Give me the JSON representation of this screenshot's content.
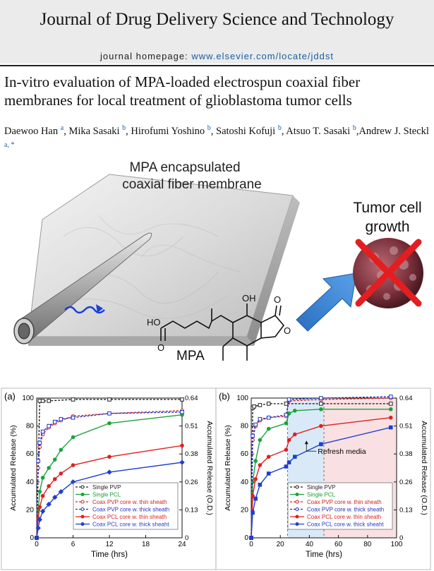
{
  "journal": {
    "title": "Journal of Drug Delivery Science and Technology",
    "homepage_label": "journal homepage:",
    "homepage_url": "www.elsevier.com/locate/jddst"
  },
  "paper": {
    "title_line1": "In-vitro evaluation of MPA-loaded electrospun coaxial fiber",
    "title_line2": "membranes for local treatment of glioblastoma tumor cells"
  },
  "authors": [
    {
      "name": "Daewoo Han",
      "aff": "a",
      "sep": ", "
    },
    {
      "name": "Mika Sasaki",
      "aff": "b",
      "sep": ", "
    },
    {
      "name": "Hirofumi Yoshino",
      "aff": "b",
      "sep": ", "
    },
    {
      "name": "Satoshi Kofuji",
      "aff": "b",
      "sep": ", "
    },
    {
      "name": "Atsuo T. Sasaki",
      "aff": "b",
      "sep": ","
    },
    {
      "name": "Andrew J. Steckl",
      "aff": "a, *",
      "sep": ""
    }
  ],
  "graphic": {
    "membrane_label_line1": "MPA encapsulated",
    "membrane_label_line2": "coaxial fiber membrane",
    "tumor_label_line1": "Tumor cell",
    "tumor_label_line2": "growth",
    "drug_name": "MPA",
    "chem_oh": "OH",
    "chem_ho": "HO",
    "chem_o1": "O",
    "chem_o2": "O",
    "chem_o3": "O"
  },
  "chart_data": [
    {
      "panel": "(a)",
      "type": "line",
      "xlabel": "Time (hrs)",
      "ylabel": "Accumulated Release (%)",
      "y2label": "Accumulated Release (O.D.)",
      "xlim": [
        0,
        24
      ],
      "ylim": [
        0,
        100
      ],
      "xticks": [
        "0",
        "6",
        "12",
        "18",
        "24"
      ],
      "yticks": [
        "0",
        "20",
        "40",
        "60",
        "80",
        "100"
      ],
      "y2ticks": [
        "0",
        "0.13",
        "0.26",
        "0.38",
        "0.51",
        "0.64"
      ],
      "grid": false,
      "legend": "bottom-right",
      "series": [
        {
          "name": "Single PVP",
          "color": "#222222",
          "dash": true,
          "marker": "square-open",
          "x": [
            0,
            0.5,
            1,
            2,
            6,
            12,
            24
          ],
          "y": [
            0,
            98,
            98,
            98,
            99,
            99,
            99
          ]
        },
        {
          "name": "Single PCL",
          "color": "#1aa33a",
          "dash": false,
          "marker": "circle",
          "x": [
            0,
            0.25,
            0.5,
            1,
            2,
            3,
            4,
            6,
            12,
            24
          ],
          "y": [
            0,
            20,
            33,
            43,
            50,
            56,
            63,
            72,
            82,
            88
          ]
        },
        {
          "name": "Coax PVP core w. thin sheath",
          "color": "#d62020",
          "dash": true,
          "marker": "circle-open",
          "x": [
            0,
            0.25,
            0.5,
            1,
            2,
            3,
            4,
            6,
            12,
            24
          ],
          "y": [
            0,
            50,
            65,
            74,
            79,
            82,
            84,
            87,
            89,
            91
          ]
        },
        {
          "name": "Coax PVP core w. thick sheath",
          "color": "#2030c0",
          "dash": true,
          "marker": "square-open",
          "x": [
            0,
            0.25,
            0.5,
            1,
            2,
            3,
            4,
            6,
            12,
            24
          ],
          "y": [
            0,
            55,
            68,
            76,
            80,
            83,
            85,
            86,
            89,
            90
          ]
        },
        {
          "name": "Coax PCL core w. thin sheath",
          "color": "#e02020",
          "dash": false,
          "marker": "circle",
          "x": [
            0,
            0.25,
            0.5,
            1,
            2,
            3,
            4,
            6,
            12,
            24
          ],
          "y": [
            0,
            14,
            22,
            30,
            37,
            42,
            46,
            52,
            58,
            66
          ]
        },
        {
          "name": "Coax PCL core w. thick sheaht",
          "color": "#1f3fd0",
          "dash": false,
          "marker": "diamond",
          "x": [
            0,
            0.25,
            0.5,
            1,
            2,
            3,
            4,
            6,
            12,
            24
          ],
          "y": [
            0,
            7,
            13,
            19,
            24,
            29,
            33,
            40,
            47,
            54
          ]
        }
      ]
    },
    {
      "panel": "(b)",
      "type": "line",
      "xlabel": "Time (hrs)",
      "ylabel": "Accumulated Release (%)",
      "y2label": "Accumulated Release (O.D.)",
      "xlim": [
        0,
        100
      ],
      "ylim": [
        0,
        100
      ],
      "xticks": [
        "0",
        "20",
        "40",
        "60",
        "80",
        "100"
      ],
      "yticks": [
        "0",
        "20",
        "40",
        "60",
        "80",
        "100"
      ],
      "y2ticks": [
        "0",
        "0.13",
        "0.26",
        "0.38",
        "0.51",
        "0.64"
      ],
      "grid": false,
      "legend": "bottom-right",
      "annotation": "Refresh media",
      "shaded_regions": [
        {
          "x": [
            25,
            50
          ],
          "color": "#cfe3f5"
        },
        {
          "x": [
            50,
            100
          ],
          "color": "#f7d9dc"
        }
      ],
      "series": [
        {
          "name": "Single PVP",
          "color": "#222222",
          "dash": true,
          "marker": "square-open",
          "x": [
            0,
            1,
            2,
            6,
            12,
            24,
            48,
            96
          ],
          "y": [
            0,
            93,
            94,
            95,
            96,
            96,
            96,
            96
          ]
        },
        {
          "name": "Single PCL",
          "color": "#1aa33a",
          "dash": false,
          "marker": "circle",
          "x": [
            0,
            1,
            3,
            6,
            12,
            24,
            26,
            30,
            48,
            96
          ],
          "y": [
            0,
            40,
            55,
            70,
            78,
            82,
            89,
            91,
            92,
            92
          ]
        },
        {
          "name": "Coax PVP core w. thin sheath",
          "color": "#d62020",
          "dash": true,
          "marker": "circle-open",
          "x": [
            0,
            1,
            3,
            6,
            12,
            24,
            26,
            48,
            96
          ],
          "y": [
            0,
            70,
            80,
            84,
            86,
            87,
            98,
            99,
            100
          ]
        },
        {
          "name": "Coax PVP core w. thick sheath",
          "color": "#2030c0",
          "dash": true,
          "marker": "square-open",
          "x": [
            0,
            1,
            3,
            6,
            12,
            24,
            26,
            48,
            96
          ],
          "y": [
            0,
            73,
            81,
            85,
            86,
            88,
            99,
            100,
            101
          ]
        },
        {
          "name": "Coax PCL core w. thin sheath",
          "color": "#e02020",
          "dash": false,
          "marker": "circle",
          "x": [
            0,
            1,
            3,
            6,
            12,
            24,
            26,
            30,
            48,
            96
          ],
          "y": [
            0,
            30,
            42,
            52,
            58,
            63,
            70,
            74,
            80,
            86
          ]
        },
        {
          "name": "Coax PCL core w. thick sheaht",
          "color": "#1f3fd0",
          "dash": false,
          "marker": "square",
          "x": [
            0,
            1,
            3,
            6,
            12,
            24,
            26,
            30,
            48,
            96
          ],
          "y": [
            0,
            18,
            28,
            38,
            46,
            51,
            54,
            58,
            67,
            79
          ]
        }
      ]
    }
  ]
}
